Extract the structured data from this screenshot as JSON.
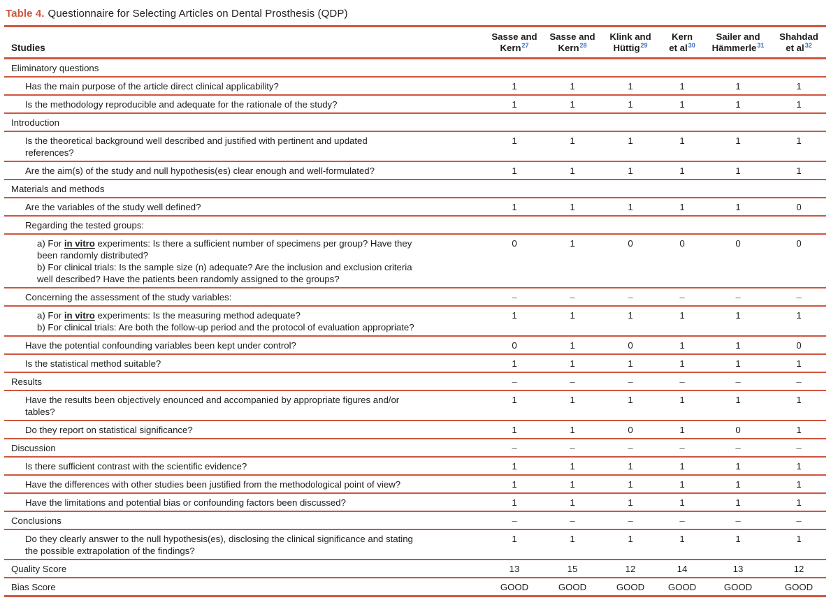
{
  "title": {
    "prefix": "Table 4.",
    "text": "Questionnaire for Selecting Articles on Dental Prosthesis (QDP)"
  },
  "colors": {
    "accent_rule": "#CD5640",
    "reference_superscript": "#3E6FB6",
    "dash_gray": "#5F5F5F"
  },
  "table": {
    "studies_header": "Studies",
    "columns": [
      {
        "name": "Sasse and Kern",
        "lines": [
          "Sasse and",
          "Kern"
        ],
        "ref": "27"
      },
      {
        "name": "Sasse and Kern",
        "lines": [
          "Sasse and",
          "Kern"
        ],
        "ref": "28"
      },
      {
        "name": "Klink and Hüttig",
        "lines": [
          "Klink and",
          "Hüttig"
        ],
        "ref": "29"
      },
      {
        "name": "Kern et al",
        "lines": [
          "Kern",
          "et al"
        ],
        "ref": "30"
      },
      {
        "name": "Sailer and Hämmerle",
        "lines": [
          "Sailer and",
          "Hämmerle"
        ],
        "ref": "31"
      },
      {
        "name": "Shahdad et al",
        "lines": [
          "Shahdad",
          "et al"
        ],
        "ref": "32"
      }
    ],
    "rows": [
      {
        "type": "section",
        "lines": [
          [
            {
              "t": "Eliminatory questions"
            }
          ]
        ],
        "values": []
      },
      {
        "type": "question",
        "lines": [
          [
            {
              "t": "Has the main purpose of the article direct clinical applicability?"
            }
          ]
        ],
        "values": [
          "1",
          "1",
          "1",
          "1",
          "1",
          "1"
        ]
      },
      {
        "type": "question",
        "lines": [
          [
            {
              "t": "Is the methodology reproducible and adequate for the rationale of the study?"
            }
          ]
        ],
        "values": [
          "1",
          "1",
          "1",
          "1",
          "1",
          "1"
        ]
      },
      {
        "type": "section",
        "lines": [
          [
            {
              "t": "Introduction"
            }
          ]
        ],
        "values": []
      },
      {
        "type": "question",
        "lines": [
          [
            {
              "t": "Is the theoretical background well described and justified with pertinent and updated"
            }
          ],
          [
            {
              "t": "references?"
            }
          ]
        ],
        "values": [
          "1",
          "1",
          "1",
          "1",
          "1",
          "1"
        ]
      },
      {
        "type": "question",
        "lines": [
          [
            {
              "t": "Are the aim(s) of the study and null hypothesis(es) clear enough and well-formulated?"
            }
          ]
        ],
        "values": [
          "1",
          "1",
          "1",
          "1",
          "1",
          "1"
        ]
      },
      {
        "type": "section",
        "lines": [
          [
            {
              "t": "Materials and methods"
            }
          ]
        ],
        "values": []
      },
      {
        "type": "question",
        "lines": [
          [
            {
              "t": "Are the variables of the study well defined?"
            }
          ]
        ],
        "values": [
          "1",
          "1",
          "1",
          "1",
          "1",
          "0"
        ]
      },
      {
        "type": "question",
        "lines": [
          [
            {
              "t": "Regarding the tested groups:"
            }
          ]
        ],
        "values": []
      },
      {
        "type": "sub",
        "lines": [
          [
            {
              "t": "a) For "
            },
            {
              "t": "in vitro",
              "e": true
            },
            {
              "t": " experiments: Is there a sufficient number of specimens per group? Have they"
            }
          ],
          [
            {
              "t": "been randomly distributed?"
            }
          ],
          [
            {
              "t": "b) For clinical trials: Is the sample size (n) adequate? Are the inclusion and exclusion criteria"
            }
          ],
          [
            {
              "t": "well described? Have the patients been randomly assigned to the groups?"
            }
          ]
        ],
        "values": [
          "0",
          "1",
          "0",
          "0",
          "0",
          "0"
        ]
      },
      {
        "type": "question",
        "lines": [
          [
            {
              "t": "Concerning the assessment of the study variables:"
            }
          ]
        ],
        "values": [
          "–",
          "–",
          "–",
          "–",
          "–",
          "–"
        ]
      },
      {
        "type": "sub",
        "lines": [
          [
            {
              "t": "a) For "
            },
            {
              "t": "in vitro",
              "e": true
            },
            {
              "t": " experiments: Is the measuring method adequate?"
            }
          ],
          [
            {
              "t": "b) For clinical trials: Are both the follow-up period and the protocol of evaluation appropriate?"
            }
          ]
        ],
        "values": [
          "1",
          "1",
          "1",
          "1",
          "1",
          "1"
        ]
      },
      {
        "type": "question",
        "lines": [
          [
            {
              "t": "Have the potential confounding variables been kept under control?"
            }
          ]
        ],
        "values": [
          "0",
          "1",
          "0",
          "1",
          "1",
          "0"
        ]
      },
      {
        "type": "question",
        "lines": [
          [
            {
              "t": "Is the statistical method suitable?"
            }
          ]
        ],
        "values": [
          "1",
          "1",
          "1",
          "1",
          "1",
          "1"
        ]
      },
      {
        "type": "section",
        "lines": [
          [
            {
              "t": "Results"
            }
          ]
        ],
        "values": [
          "–",
          "–",
          "–",
          "–",
          "–",
          "–"
        ]
      },
      {
        "type": "question",
        "lines": [
          [
            {
              "t": "Have the results been objectively enounced and accompanied by appropriate figures and/or"
            }
          ],
          [
            {
              "t": "tables?"
            }
          ]
        ],
        "values": [
          "1",
          "1",
          "1",
          "1",
          "1",
          "1"
        ]
      },
      {
        "type": "question",
        "lines": [
          [
            {
              "t": "Do they report on statistical significance?"
            }
          ]
        ],
        "values": [
          "1",
          "1",
          "0",
          "1",
          "0",
          "1"
        ]
      },
      {
        "type": "section",
        "lines": [
          [
            {
              "t": "Discussion"
            }
          ]
        ],
        "values": [
          "–",
          "–",
          "–",
          "–",
          "–",
          "–"
        ]
      },
      {
        "type": "question",
        "lines": [
          [
            {
              "t": "Is there sufficient contrast with the scientific evidence?"
            }
          ]
        ],
        "values": [
          "1",
          "1",
          "1",
          "1",
          "1",
          "1"
        ]
      },
      {
        "type": "question",
        "lines": [
          [
            {
              "t": "Have the differences with other studies been justified from the methodological point of view?"
            }
          ]
        ],
        "values": [
          "1",
          "1",
          "1",
          "1",
          "1",
          "1"
        ]
      },
      {
        "type": "question",
        "lines": [
          [
            {
              "t": "Have the limitations and potential bias or confounding factors been discussed?"
            }
          ]
        ],
        "values": [
          "1",
          "1",
          "1",
          "1",
          "1",
          "1"
        ]
      },
      {
        "type": "section",
        "lines": [
          [
            {
              "t": "Conclusions"
            }
          ]
        ],
        "values": [
          "–",
          "–",
          "–",
          "–",
          "–",
          "–"
        ]
      },
      {
        "type": "question",
        "lines": [
          [
            {
              "t": "Do they clearly answer to the null hypothesis(es), disclosing the clinical significance and stating"
            }
          ],
          [
            {
              "t": "the possible extrapolation of the findings?"
            }
          ]
        ],
        "values": [
          "1",
          "1",
          "1",
          "1",
          "1",
          "1"
        ]
      },
      {
        "type": "score",
        "lines": [
          [
            {
              "t": "Quality Score"
            }
          ]
        ],
        "values": [
          "13",
          "15",
          "12",
          "14",
          "13",
          "12"
        ]
      },
      {
        "type": "score",
        "lines": [
          [
            {
              "t": "Bias Score"
            }
          ]
        ],
        "values": [
          "GOOD",
          "GOOD",
          "GOOD",
          "GOOD",
          "GOOD",
          "GOOD"
        ]
      }
    ]
  }
}
